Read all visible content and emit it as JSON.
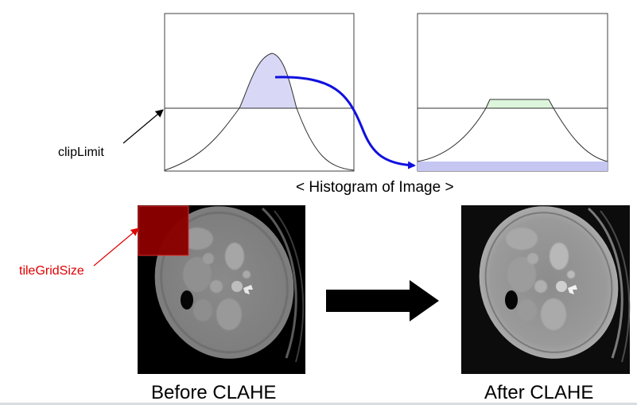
{
  "labels": {
    "clip_limit": "clipLimit",
    "histogram_caption": "< Histogram of Image >",
    "tile_grid_size": "tileGridSize",
    "before": "Before CLAHE",
    "after": "After CLAHE"
  },
  "colors": {
    "clipped_fill": "#d8d8f6",
    "raised_fill": "#c6c6f2",
    "excess_fill": "#dcf6dc",
    "redistribute_arrow": "#1010e0",
    "tile_fill": "#8b0000",
    "tile_label": "#e00000",
    "process_arrow": "#000000"
  }
}
